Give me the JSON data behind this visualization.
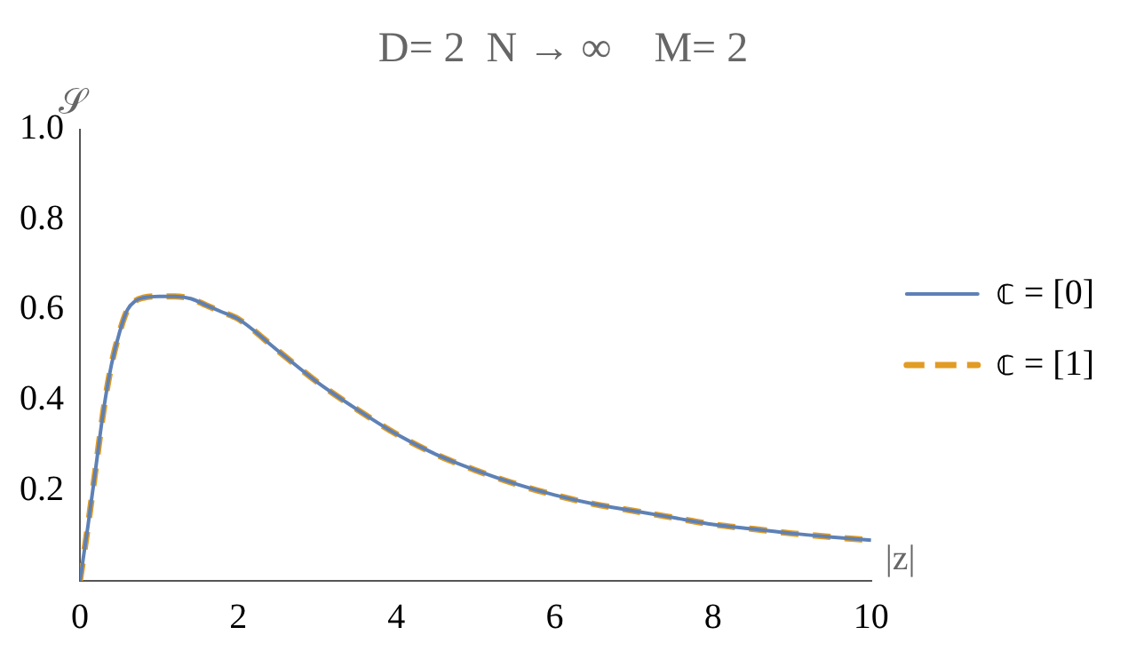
{
  "chart_data": {
    "type": "line",
    "title": "D= 2  N → ∞    M= 2",
    "xlabel": "|z|",
    "ylabel": "𝒮",
    "x": [
      0,
      0.1,
      0.2,
      0.3,
      0.4,
      0.5,
      0.6,
      0.7,
      0.8,
      1.0,
      1.2,
      1.4,
      1.6,
      1.8,
      2,
      2.5,
      3,
      3.5,
      4,
      4.5,
      5,
      5.5,
      6,
      6.5,
      7,
      7.5,
      8,
      8.5,
      9,
      9.5,
      10
    ],
    "series": [
      {
        "name": "𝕔 = [0]",
        "color": "#5e81b5",
        "line_style": "solid",
        "values": [
          0,
          0.12,
          0.25,
          0.38,
          0.48,
          0.55,
          0.6,
          0.62,
          0.627,
          0.63,
          0.63,
          0.625,
          0.61,
          0.595,
          0.58,
          0.51,
          0.44,
          0.38,
          0.325,
          0.28,
          0.245,
          0.215,
          0.19,
          0.17,
          0.155,
          0.14,
          0.125,
          0.115,
          0.105,
          0.097,
          0.09
        ]
      },
      {
        "name": "𝕔 = [1]",
        "color": "#e19c24",
        "line_style": "dashed",
        "values": [
          0,
          0.12,
          0.25,
          0.38,
          0.48,
          0.55,
          0.6,
          0.62,
          0.627,
          0.63,
          0.63,
          0.625,
          0.61,
          0.595,
          0.58,
          0.51,
          0.44,
          0.38,
          0.325,
          0.28,
          0.245,
          0.215,
          0.19,
          0.17,
          0.155,
          0.14,
          0.125,
          0.115,
          0.105,
          0.097,
          0.09
        ]
      }
    ],
    "xlim": [
      0,
      10
    ],
    "ylim": [
      0,
      1
    ],
    "xticks": [
      0,
      2,
      4,
      6,
      8,
      10
    ],
    "yticks": [
      0.2,
      0.4,
      0.6,
      0.8,
      {
        "value": 1,
        "label": "1.0"
      }
    ],
    "grid": false,
    "legend": "right",
    "marker": "none"
  }
}
